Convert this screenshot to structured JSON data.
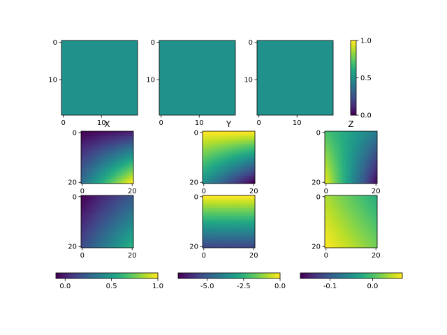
{
  "chart_data": [
    {
      "type": "heatmap",
      "panel": "top-1",
      "title": "",
      "data_shape": [
        20,
        20
      ],
      "uniform_value": 0.5,
      "x_ticks": [
        "0",
        "10"
      ],
      "y_ticks": [
        "0",
        "10"
      ]
    },
    {
      "type": "heatmap",
      "panel": "top-2",
      "title": "",
      "data_shape": [
        20,
        20
      ],
      "uniform_value": 0.5,
      "x_ticks": [
        "0",
        "10"
      ],
      "y_ticks": [
        "0",
        "10"
      ]
    },
    {
      "type": "heatmap",
      "panel": "top-3",
      "title": "",
      "data_shape": [
        20,
        20
      ],
      "uniform_value": 0.5,
      "x_ticks": [
        "0",
        "10"
      ],
      "y_ticks": [
        "0",
        "10"
      ]
    },
    {
      "type": "colorbar",
      "panel": "top-colorbar",
      "orientation": "vertical",
      "range": [
        0.0,
        1.0
      ],
      "ticks": [
        "0.0",
        "0.5",
        "1.0"
      ]
    },
    {
      "type": "heatmap",
      "panel": "X-upper",
      "title": "X",
      "data_shape": [
        21,
        21
      ],
      "range": [
        -0.1,
        1.0
      ],
      "corners": {
        "top_left": -0.1,
        "top_right": 0.0,
        "bottom_left": 0.3,
        "bottom_right": 1.0
      },
      "x_ticks": [
        "0",
        "20"
      ],
      "y_ticks": [
        "0",
        "20"
      ]
    },
    {
      "type": "heatmap",
      "panel": "Y-upper",
      "title": "Y",
      "data_shape": [
        21,
        21
      ],
      "range": [
        -7.0,
        0.0
      ],
      "corners": {
        "top_left": 0.0,
        "top_right": 0.0,
        "bottom_left": -3.5,
        "bottom_right": -7.0
      },
      "x_ticks": [
        "0",
        "20"
      ],
      "y_ticks": [
        "0",
        "20"
      ]
    },
    {
      "type": "heatmap",
      "panel": "Z-upper",
      "title": "Z",
      "data_shape": [
        21,
        21
      ],
      "range": [
        -0.17,
        0.07
      ],
      "corners": {
        "top_left": 0.0,
        "top_right": -0.07,
        "bottom_left": 0.06,
        "bottom_right": -0.16
      },
      "x_ticks": [
        "0",
        "20"
      ],
      "y_ticks": [
        "0",
        "20"
      ]
    },
    {
      "type": "heatmap",
      "panel": "X-lower",
      "title": "",
      "data_shape": [
        21,
        21
      ],
      "range": [
        -0.1,
        1.0
      ],
      "corners": {
        "top_left": -0.1,
        "top_right": 0.2,
        "bottom_left": 0.15,
        "bottom_right": 0.6
      },
      "x_ticks": [
        "0",
        "20"
      ],
      "y_ticks": [
        "0",
        "20"
      ]
    },
    {
      "type": "heatmap",
      "panel": "Y-lower",
      "title": "",
      "data_shape": [
        21,
        21
      ],
      "range": [
        -7.0,
        0.0
      ],
      "corners": {
        "top_left": 0.0,
        "top_right": 0.0,
        "bottom_left": -5.5,
        "bottom_right": -5.5
      },
      "x_ticks": [
        "0",
        "20"
      ],
      "y_ticks": [
        "0",
        "20"
      ]
    },
    {
      "type": "heatmap",
      "panel": "Z-lower",
      "title": "",
      "data_shape": [
        21,
        21
      ],
      "range": [
        -0.17,
        0.07
      ],
      "corners": {
        "top_left": 0.04,
        "top_right": -0.02,
        "bottom_left": 0.07,
        "bottom_right": 0.02
      },
      "x_ticks": [
        "0",
        "20"
      ],
      "y_ticks": [
        "0",
        "20"
      ]
    },
    {
      "type": "colorbar",
      "panel": "X-colorbar",
      "orientation": "horizontal",
      "range": [
        -0.1,
        1.0
      ],
      "ticks": [
        "0.0",
        "0.5",
        "1.0"
      ]
    },
    {
      "type": "colorbar",
      "panel": "Y-colorbar",
      "orientation": "horizontal",
      "range": [
        -7.0,
        0.0
      ],
      "ticks": [
        "-5.0",
        "-2.5",
        "0.0"
      ]
    },
    {
      "type": "colorbar",
      "panel": "Z-colorbar",
      "orientation": "horizontal",
      "range": [
        -0.17,
        0.07
      ],
      "ticks": [
        "-0.1",
        "0.0"
      ]
    }
  ]
}
